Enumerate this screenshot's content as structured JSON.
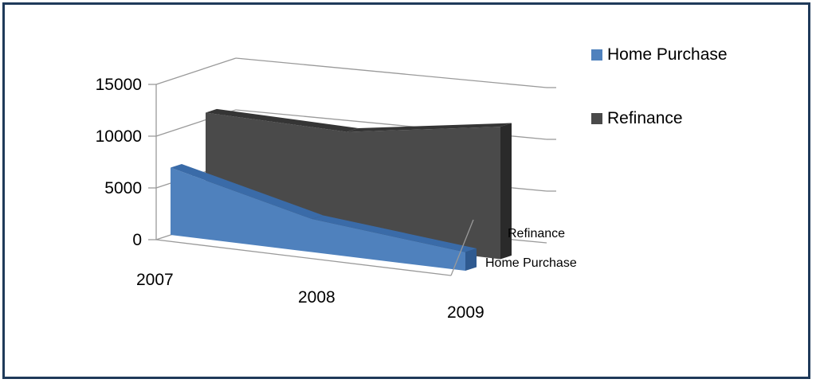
{
  "chart_data": {
    "type": "area",
    "variant": "3d-area",
    "categories": [
      "2007",
      "2008",
      "2009"
    ],
    "series": [
      {
        "name": "Home Purchase",
        "values": [
          6500,
          3200,
          1800
        ],
        "color": "#4f81bd"
      },
      {
        "name": "Refinance",
        "values": [
          10700,
          10500,
          12800
        ],
        "color": "#4a4a4a"
      }
    ],
    "ylim": [
      0,
      15000
    ],
    "yticks": [
      "0",
      "5000",
      "10000",
      "15000"
    ],
    "grid": true,
    "legend_position": "right"
  }
}
